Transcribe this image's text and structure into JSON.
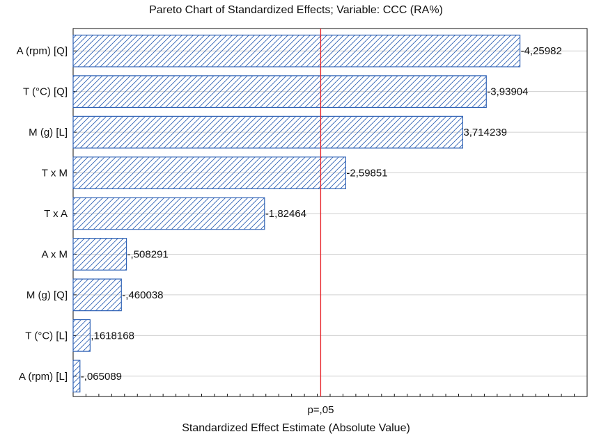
{
  "chart_data": {
    "type": "bar",
    "orientation": "horizontal",
    "title": "Pareto Chart of Standardized Effects; Variable: CCC (RA%)",
    "xlabel": "Standardized Effect Estimate (Absolute Value)",
    "ylabel": "",
    "xlim": [
      0,
      4.9
    ],
    "grid": true,
    "categories": [
      "A (rpm) [Q]",
      "T (°C) [Q]",
      "M (g) [L]",
      "T x M",
      "T x A",
      "A x M",
      "M (g) [Q]",
      "T (°C) [L]",
      "A (rpm) [L]"
    ],
    "values": [
      4.25982,
      3.93904,
      3.714239,
      2.59851,
      1.82464,
      0.508291,
      0.460038,
      0.1618168,
      0.065089
    ],
    "data_labels": [
      "-4,25982",
      "-3,93904",
      "3,714239",
      "-2,59851",
      "-1,82464",
      "-,508291",
      "-,460038",
      ",1618168",
      "-,065089"
    ],
    "reference_line": {
      "value": 2.36,
      "label": "p=,05",
      "color": "#e8262c"
    },
    "bar_color": "#2f62b5"
  }
}
